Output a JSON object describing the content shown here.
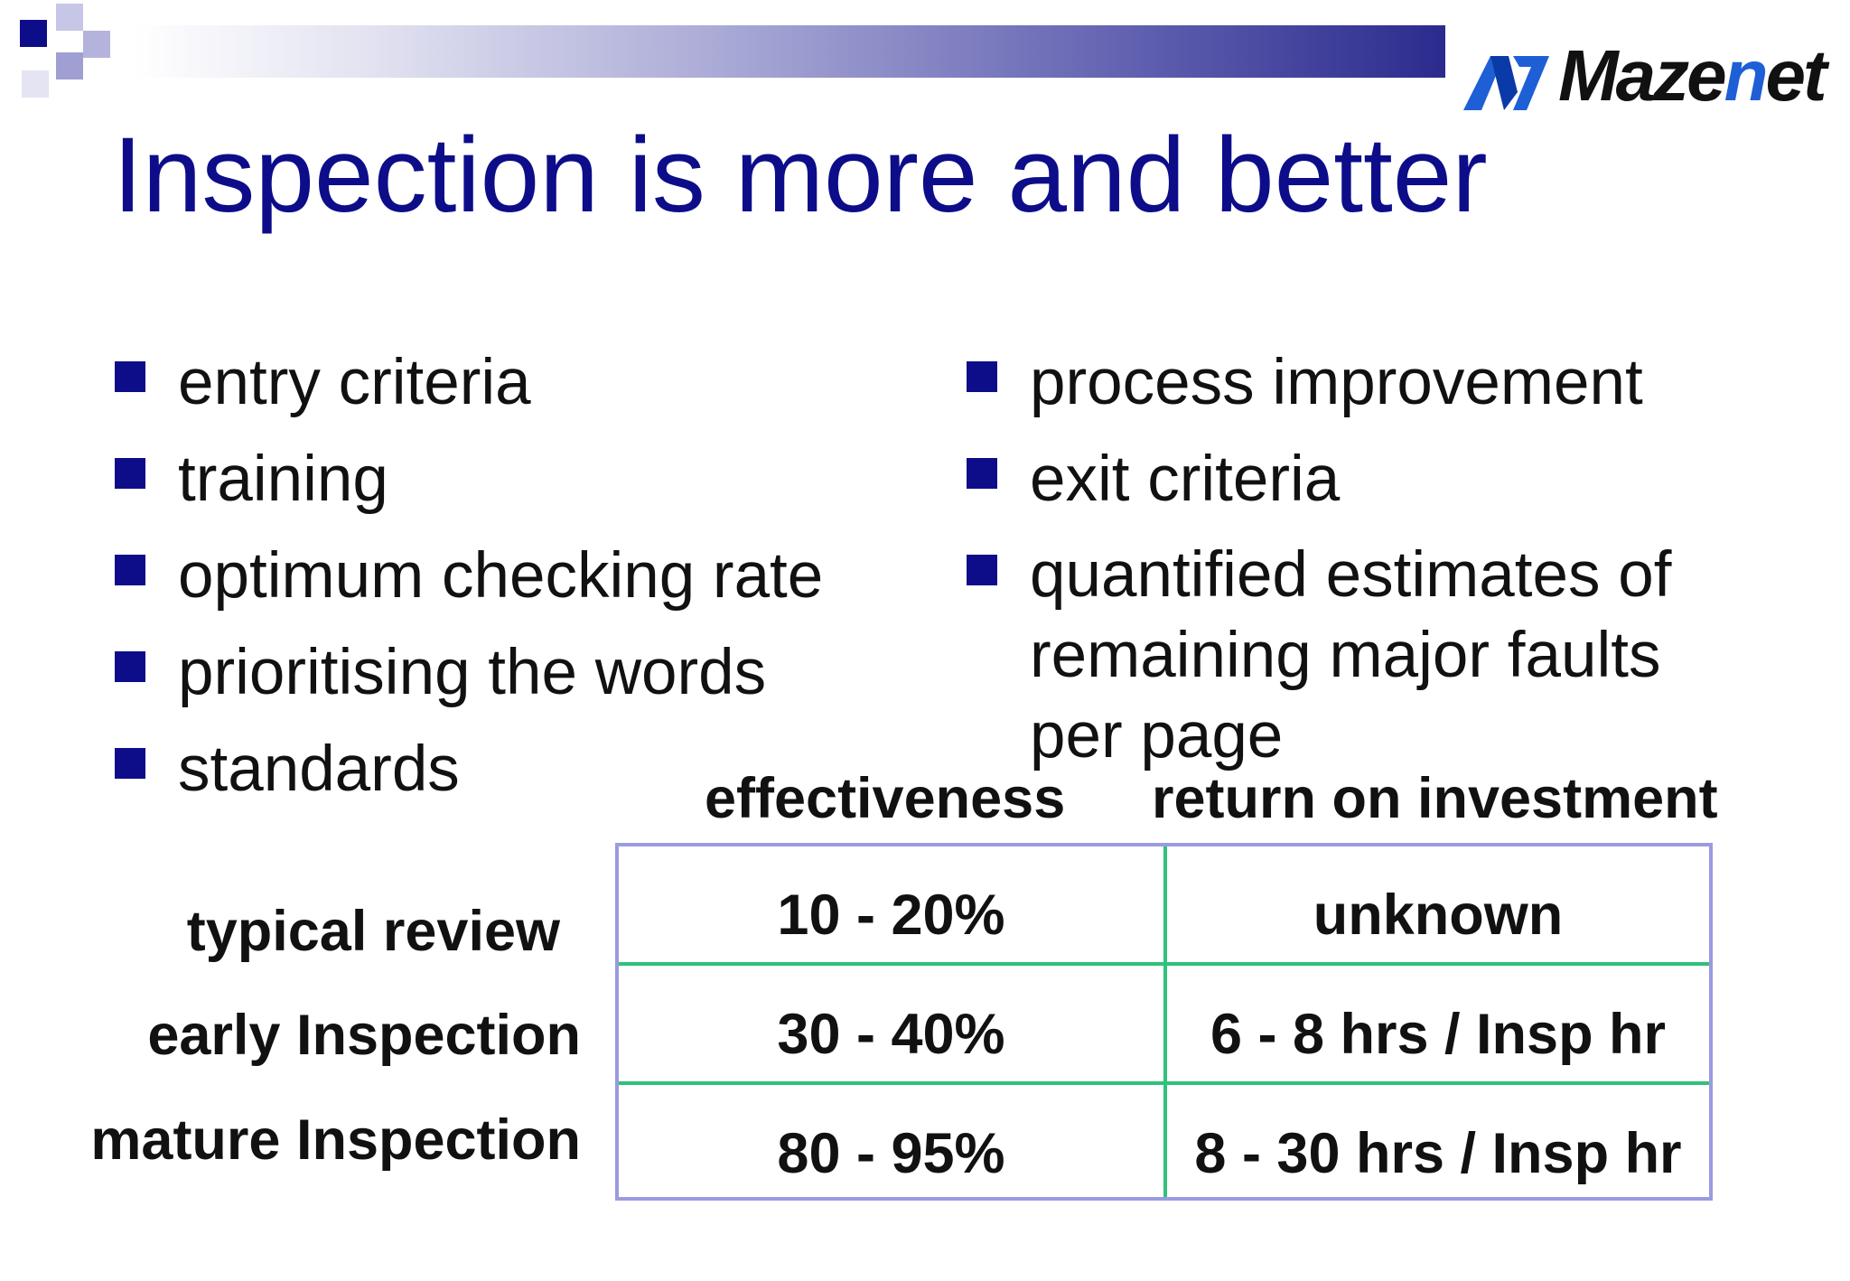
{
  "slide": {
    "title": "Inspection is more and better",
    "logo_text_prefix": "Maze",
    "logo_text_highlight": "n",
    "logo_text_suffix": "et",
    "left_bullets": [
      "entry criteria",
      "training",
      "optimum checking rate",
      "prioritising the words",
      "standards"
    ],
    "right_bullets": [
      "process improvement",
      "exit criteria",
      "quantified estimates of remaining major faults per page"
    ]
  },
  "table": {
    "headers": [
      "effectiveness",
      "return on investment"
    ],
    "rows": [
      {
        "label": "typical review",
        "effectiveness": "10 - 20%",
        "roi": "unknown"
      },
      {
        "label": "early Inspection",
        "effectiveness": "30 - 40%",
        "roi": "6 - 8 hrs / Insp hr"
      },
      {
        "label": "mature Inspection",
        "effectiveness": "80 - 95%",
        "roi": "8 - 30 hrs / Insp hr"
      }
    ]
  },
  "colors": {
    "title": "#0d0d8a",
    "bullet": "#0d0d8a",
    "table_border": "#9b9be0",
    "table_grid": "#2ec27a",
    "logo_accent": "#1f5fd6"
  }
}
